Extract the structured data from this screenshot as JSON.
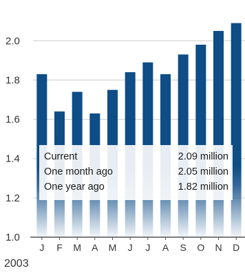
{
  "chart_data": {
    "type": "bar",
    "categories": [
      "J",
      "F",
      "M",
      "A",
      "M",
      "J",
      "J",
      "A",
      "S",
      "O",
      "N",
      "D"
    ],
    "values": [
      1.83,
      1.64,
      1.74,
      1.63,
      1.75,
      1.84,
      1.89,
      1.83,
      1.93,
      1.98,
      2.05,
      2.09
    ],
    "y_ticks": [
      "1.0",
      "1.2",
      "1.4",
      "1.6",
      "1.8",
      "2.0"
    ],
    "ylim": [
      1.0,
      2.12
    ],
    "xlabel": "2003",
    "ylabel": "",
    "title": "",
    "grid": true,
    "colors": {
      "bar": "#0e4d86",
      "bar_fade": "#ffffff",
      "grid": "#cccccc",
      "axis": "#555555"
    },
    "annotation": {
      "rows": [
        {
          "label": "Current",
          "value": "2.09 million"
        },
        {
          "label": "One month ago",
          "value": "2.05 million"
        },
        {
          "label": "One year ago",
          "value": "1.82 million"
        }
      ]
    }
  }
}
